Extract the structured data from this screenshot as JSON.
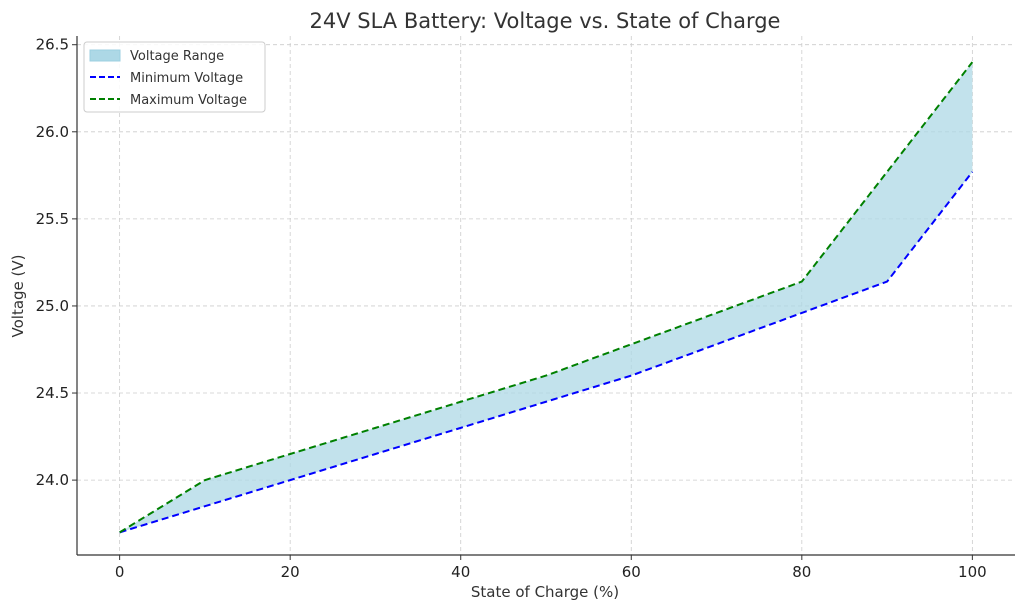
{
  "chart_data": {
    "type": "area",
    "title": "24V SLA Battery: Voltage vs. State of Charge",
    "xlabel": "State of Charge (%)",
    "ylabel": "Voltage (V)",
    "xlim": [
      -5,
      105
    ],
    "ylim": [
      23.57,
      26.55
    ],
    "xticks": [
      0,
      20,
      40,
      60,
      80,
      100
    ],
    "yticks": [
      24.0,
      24.5,
      25.0,
      25.5,
      26.0,
      26.5
    ],
    "grid": true,
    "legend_position": "top-left",
    "range_fill": {
      "name": "Voltage Range",
      "color": "#add8e6"
    },
    "series": [
      {
        "name": "Minimum Voltage",
        "color": "#0000ff",
        "style": "dashed",
        "x": [
          0,
          10,
          20,
          30,
          40,
          50,
          60,
          70,
          80,
          90,
          100
        ],
        "y": [
          23.7,
          23.85,
          24.0,
          24.15,
          24.3,
          24.45,
          24.6,
          24.78,
          24.96,
          25.14,
          25.77
        ]
      },
      {
        "name": "Maximum Voltage",
        "color": "#008000",
        "style": "dashed",
        "x": [
          0,
          10,
          20,
          30,
          40,
          50,
          60,
          70,
          80,
          90,
          100
        ],
        "y": [
          23.7,
          24.0,
          24.15,
          24.3,
          24.45,
          24.6,
          24.78,
          24.96,
          25.14,
          25.77,
          26.4
        ]
      }
    ]
  }
}
